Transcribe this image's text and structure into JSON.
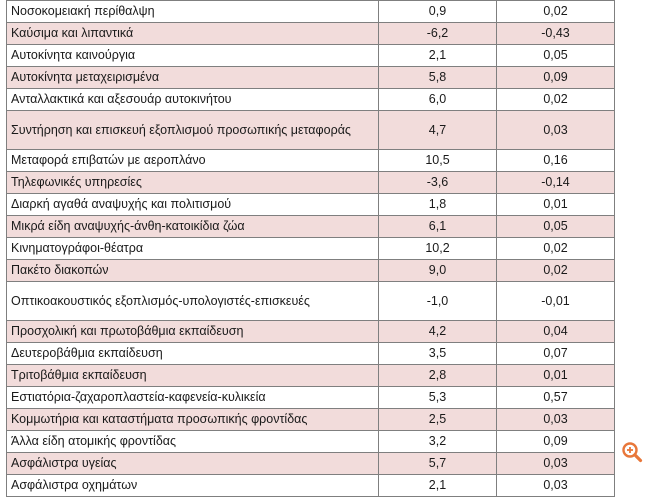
{
  "rows": [
    {
      "name": "Νοσοκομειακή περίθαλψη",
      "v1": "0,9",
      "v2": "0,02"
    },
    {
      "name": "Καύσιμα και λιπαντικά",
      "v1": "-6,2",
      "v2": "-0,43"
    },
    {
      "name": "Αυτοκίνητα καινούργια",
      "v1": "2,1",
      "v2": "0,05"
    },
    {
      "name": "Αυτοκίνητα μεταχειρισμένα",
      "v1": "5,8",
      "v2": "0,09"
    },
    {
      "name": "Ανταλλακτικά και αξεσουάρ αυτοκινήτου",
      "v1": "6,0",
      "v2": "0,02"
    },
    {
      "name": "Συντήρηση και επισκευή εξοπλισμού προσωπικής μεταφοράς",
      "v1": "4,7",
      "v2": "0,03"
    },
    {
      "name": "Μεταφορά επιβατών με αεροπλάνο",
      "v1": "10,5",
      "v2": "0,16"
    },
    {
      "name": "Τηλεφωνικές υπηρεσίες",
      "v1": "-3,6",
      "v2": "-0,14"
    },
    {
      "name": "Διαρκή αγαθά αναψυχής και πολιτισμού",
      "v1": "1,8",
      "v2": "0,01"
    },
    {
      "name": "Μικρά είδη αναψυχής-άνθη-κατοικίδια ζώα",
      "v1": "6,1",
      "v2": "0,05"
    },
    {
      "name": "Κινηματογράφοι-θέατρα",
      "v1": "10,2",
      "v2": "0,02"
    },
    {
      "name": "Πακέτο διακοπών",
      "v1": "9,0",
      "v2": "0,02"
    },
    {
      "name": "Οπτικοακουστικός εξοπλισμός-υπολογιστές-επισκευές",
      "v1": "-1,0",
      "v2": "-0,01"
    },
    {
      "name": "Προσχολική και πρωτοβάθμια εκπαίδευση",
      "v1": "4,2",
      "v2": "0,04"
    },
    {
      "name": "Δευτεροβάθμια εκπαίδευση",
      "v1": "3,5",
      "v2": "0,07"
    },
    {
      "name": "Τριτοβάθμια εκπαίδευση",
      "v1": "2,8",
      "v2": "0,01"
    },
    {
      "name": "Εστιατόρια-ζαχαροπλαστεία-καφενεία-κυλικεία",
      "v1": "5,3",
      "v2": "0,57"
    },
    {
      "name": "Κομμωτήρια και καταστήματα προσωπικής φροντίδας",
      "v1": "2,5",
      "v2": "0,03"
    },
    {
      "name": "Άλλα είδη ατομικής φροντίδας",
      "v1": "3,2",
      "v2": "0,09"
    },
    {
      "name": "Ασφάλιστρα υγείας",
      "v1": "5,7",
      "v2": "0,03"
    },
    {
      "name": "Ασφάλιστρα οχημάτων",
      "v1": "2,1",
      "v2": "0,03"
    }
  ],
  "colors": {
    "row_shade": "#f2dcdb",
    "border": "#7f7f7f",
    "zoom_icon": "#e8773a"
  },
  "zoom_icon": "zoom-in-icon"
}
